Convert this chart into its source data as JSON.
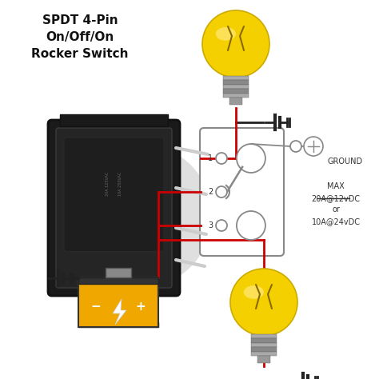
{
  "title": "SPDT 4-Pin\nOn/Off/On\nRocker Switch",
  "bg_color": "#ffffff",
  "wire_red": "#cc0000",
  "wire_dark": "#222222",
  "switch_gray": "#888888",
  "battery_color": "#f0a800",
  "battery_dark": "#333333",
  "bulb_yellow": "#f5d000",
  "bulb_outline": "#ccaa00",
  "ground_color": "#444444",
  "pin_label_color": "#333333",
  "max_text": "MAX\n20A@12vDC\nor\n10A@24vDC",
  "ground_label": "GROUND",
  "title_fontsize": 10,
  "label_fontsize": 7
}
